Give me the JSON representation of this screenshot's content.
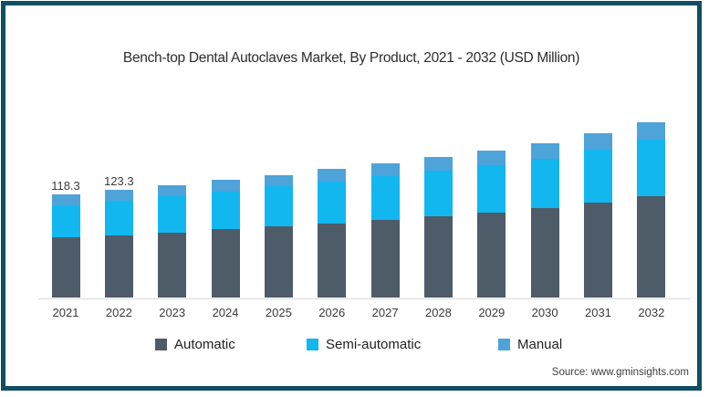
{
  "title": "Bench-top Dental Autoclaves Market, By Product, 2021 - 2032 (USD Million)",
  "source": "Source: www.gminsights.com",
  "frame_border_color": "#0f4e63",
  "chart_data": {
    "type": "bar",
    "stacked": true,
    "title": "Bench-top Dental Autoclaves Market, By Product, 2021 - 2032 (USD Million)",
    "units": "USD Million",
    "grid": false,
    "legend_position": "bottom",
    "xlabel": "",
    "ylabel": "",
    "categories": [
      "2021",
      "2022",
      "2023",
      "2024",
      "2025",
      "2026",
      "2027",
      "2028",
      "2029",
      "2030",
      "2031",
      "2032"
    ],
    "series": [
      {
        "name": "Automatic",
        "color": "#4e5b68",
        "values": [
          68.6,
          71.5,
          74.6,
          77.9,
          81.3,
          85.0,
          88.9,
          93.1,
          97.5,
          102.3,
          108.7,
          115.8
        ]
      },
      {
        "name": "Semi-automatic",
        "color": "#12b7f0",
        "values": [
          37.2,
          39.1,
          41.3,
          43.5,
          45.6,
          47.6,
          49.8,
          51.9,
          54.2,
          56.8,
          60.6,
          64.7
        ]
      },
      {
        "name": "Manual",
        "color": "#4ea3d9",
        "values": [
          12.5,
          12.7,
          12.8,
          13.0,
          13.5,
          14.2,
          14.9,
          15.9,
          16.9,
          17.8,
          18.7,
          19.8
        ]
      }
    ],
    "totals": [
      118.3,
      123.3,
      128.7,
      134.4,
      140.4,
      146.8,
      153.6,
      160.9,
      168.6,
      176.9,
      188.0,
      200.3
    ],
    "data_labels": {
      "2021": "118.3",
      "2022": "123.3"
    }
  },
  "legend": {
    "items": [
      {
        "label": "Automatic",
        "color": "#4e5b68"
      },
      {
        "label": "Semi-automatic",
        "color": "#12b7f0"
      },
      {
        "label": "Manual",
        "color": "#4ea3d9"
      }
    ]
  }
}
